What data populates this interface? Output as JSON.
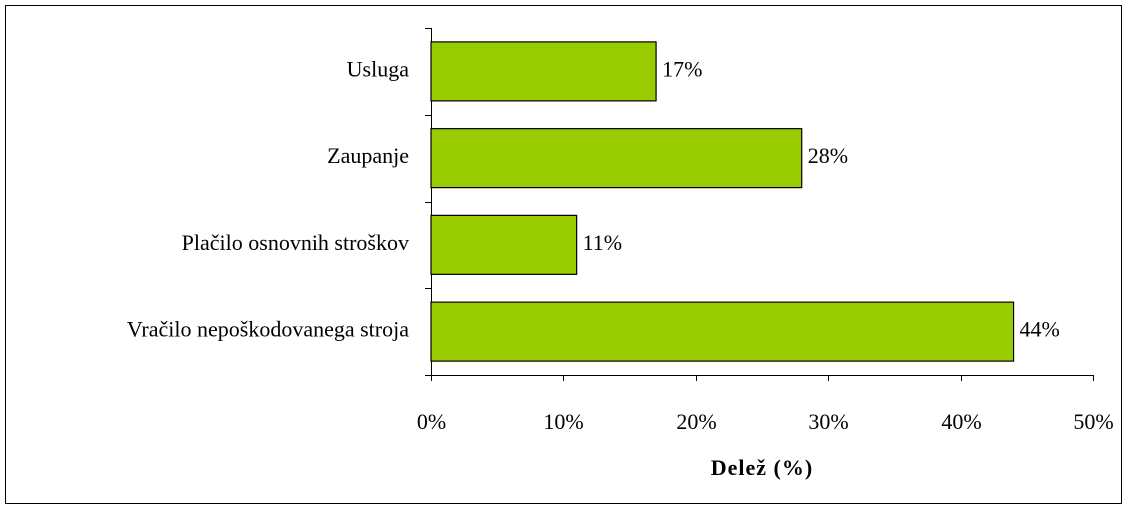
{
  "chart_data": {
    "type": "bar",
    "orientation": "horizontal",
    "categories": [
      "Usluga",
      "Zaupanje",
      "Plačilo osnovnih stroškov",
      "Vračilo nepoškodovanega stroja"
    ],
    "values": [
      17,
      28,
      11,
      44
    ],
    "value_labels": [
      "17%",
      "28%",
      "11%",
      "44%"
    ],
    "color": "#99cc00",
    "xlabel": "Delež (%)",
    "xlim": [
      0,
      50
    ],
    "xticks": [
      {
        "value": 0,
        "label": "0%"
      },
      {
        "value": 10,
        "label": "10%"
      },
      {
        "value": 20,
        "label": "20%"
      },
      {
        "value": 30,
        "label": "30%"
      },
      {
        "value": 40,
        "label": "40%"
      },
      {
        "value": 50,
        "label": "50%"
      }
    ],
    "grid": false
  }
}
